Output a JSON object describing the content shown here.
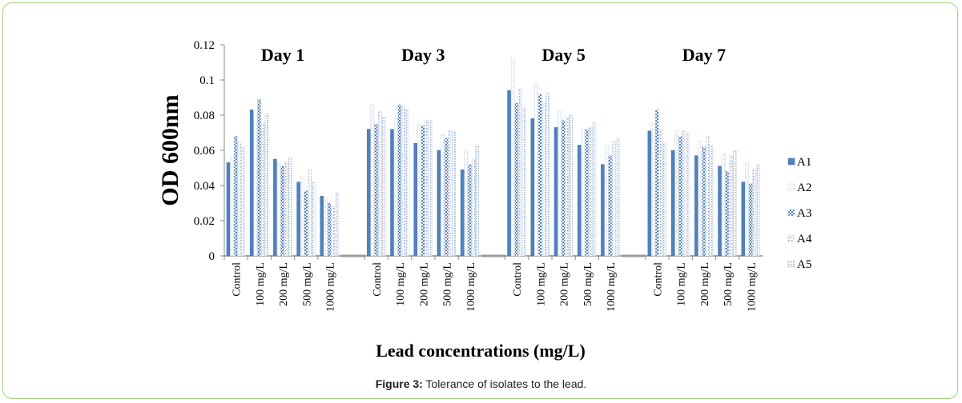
{
  "figure": {
    "label": "Figure 3:",
    "caption": "Tolerance of isolates to the lead."
  },
  "chart_data": {
    "type": "bar",
    "ylabel": "OD 600nm",
    "xlabel": "Lead concentrations (mg/L)",
    "ylim": [
      0,
      0.12
    ],
    "yticks": [
      "0",
      "0.02",
      "0.04",
      "0.06",
      "0.08",
      "0.1",
      "0.12"
    ],
    "groups": [
      "Day 1",
      "Day 3",
      "Day 5",
      "Day 7"
    ],
    "categories": [
      "Control",
      "100 mg/L",
      "200 mg/L",
      "500 mg/L",
      "1000 mg/L"
    ],
    "legend_position": "right",
    "series": [
      {
        "name": "A1",
        "color": "#4f81bd",
        "values": [
          [
            0.053,
            0.083,
            0.055,
            0.042,
            0.034
          ],
          [
            0.072,
            0.072,
            0.064,
            0.06,
            0.049
          ],
          [
            0.094,
            0.078,
            0.073,
            0.063,
            0.052
          ],
          [
            0.071,
            0.06,
            0.057,
            0.051,
            0.042
          ]
        ]
      },
      {
        "name": "A2",
        "color": "#dfe5ef",
        "values": [
          [
            0.056,
            0.077,
            0.053,
            0.045,
            0.033
          ],
          [
            0.086,
            0.078,
            0.075,
            0.069,
            0.06
          ],
          [
            0.112,
            0.098,
            0.082,
            0.072,
            0.063
          ],
          [
            0.076,
            0.071,
            0.065,
            0.058,
            0.053
          ]
        ]
      },
      {
        "name": "A3",
        "color": "#6b8fc4",
        "values": [
          [
            0.068,
            0.089,
            0.051,
            0.037,
            0.03
          ],
          [
            0.075,
            0.086,
            0.074,
            0.067,
            0.052
          ],
          [
            0.087,
            0.092,
            0.077,
            0.072,
            0.057
          ],
          [
            0.083,
            0.068,
            0.062,
            0.048,
            0.041
          ]
        ]
      },
      {
        "name": "A4",
        "color": "#eef1f6",
        "values": [
          [
            0.065,
            0.075,
            0.053,
            0.049,
            0.028
          ],
          [
            0.082,
            0.085,
            0.077,
            0.071,
            0.055
          ],
          [
            0.095,
            0.087,
            0.079,
            0.073,
            0.065
          ],
          [
            0.072,
            0.071,
            0.068,
            0.057,
            0.049
          ]
        ]
      },
      {
        "name": "A5",
        "color": "#c9d6ea",
        "values": [
          [
            0.062,
            0.081,
            0.056,
            0.042,
            0.036
          ],
          [
            0.079,
            0.083,
            0.077,
            0.071,
            0.063
          ],
          [
            0.084,
            0.093,
            0.08,
            0.076,
            0.067
          ],
          [
            0.064,
            0.07,
            0.063,
            0.06,
            0.052
          ]
        ]
      }
    ]
  }
}
